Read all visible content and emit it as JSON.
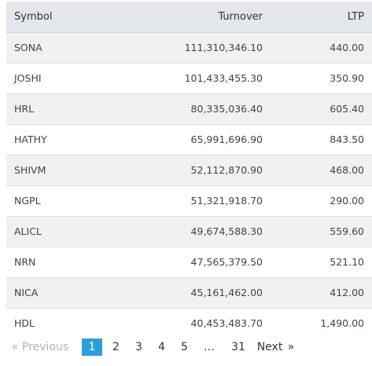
{
  "table": {
    "headers": [
      "Symbol",
      "Turnover",
      "LTP"
    ],
    "rows": [
      {
        "symbol": "SONA",
        "turnover": "111,310,346.10",
        "ltp": "440.00"
      },
      {
        "symbol": "JOSHI",
        "turnover": "101,433,455.30",
        "ltp": "350.90"
      },
      {
        "symbol": "HRL",
        "turnover": "80,335,036.40",
        "ltp": "605.40"
      },
      {
        "symbol": "HATHY",
        "turnover": "65,991,696.90",
        "ltp": "843.50"
      },
      {
        "symbol": "SHIVM",
        "turnover": "52,112,870.90",
        "ltp": "468.00"
      },
      {
        "symbol": "NGPL",
        "turnover": "51,321,918.70",
        "ltp": "290.00"
      },
      {
        "symbol": "ALICL",
        "turnover": "49,674,588.30",
        "ltp": "559.60"
      },
      {
        "symbol": "NRN",
        "turnover": "47,565,379.50",
        "ltp": "521.10"
      },
      {
        "symbol": "NICA",
        "turnover": "45,161,462.00",
        "ltp": "412.00"
      },
      {
        "symbol": "HDL",
        "turnover": "40,453,483.70",
        "ltp": "1,490.00"
      }
    ]
  },
  "pagination": {
    "prev_arrow": "«",
    "prev_label": "Previous",
    "pages": [
      "1",
      "2",
      "3",
      "4",
      "5"
    ],
    "ellipsis": "…",
    "last_page": "31",
    "next_label": "Next",
    "next_arrow": "»",
    "active_color": "#2a9fd8"
  }
}
